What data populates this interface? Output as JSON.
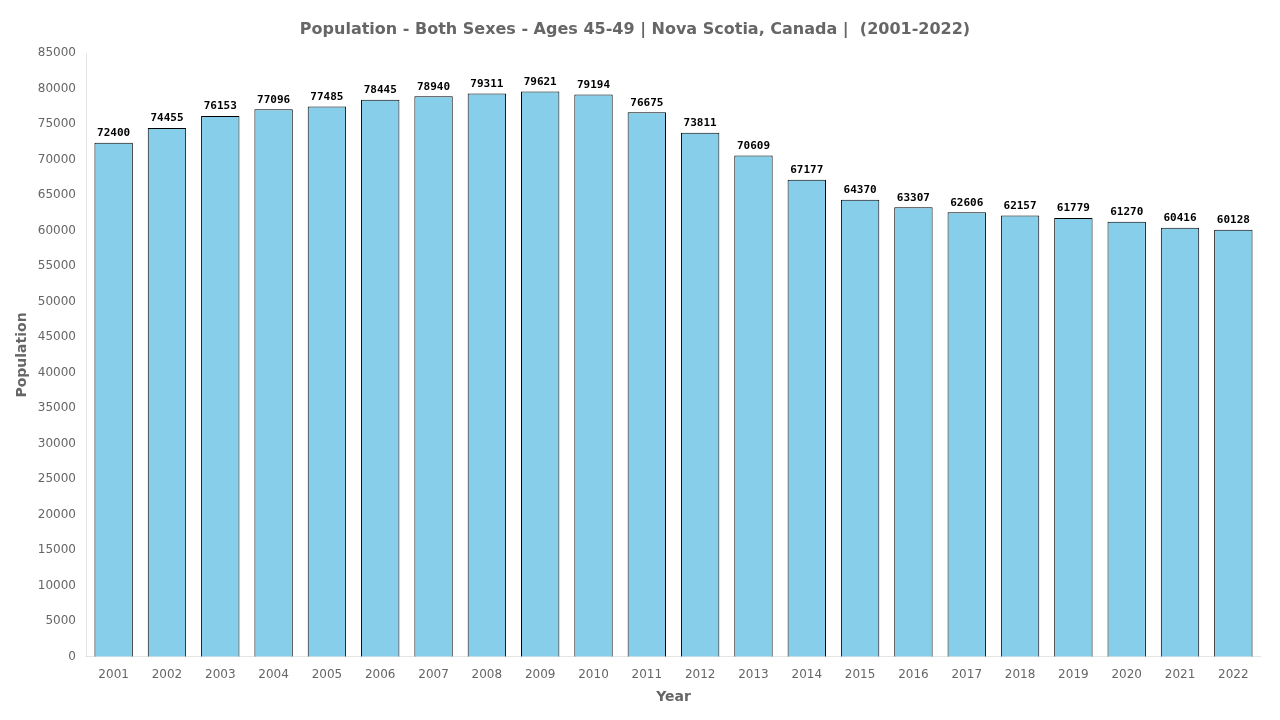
{
  "chart_data": {
    "type": "bar",
    "title": "Population - Both Sexes - Ages 45-49 | Nova Scotia, Canada |  (2001-2022)",
    "xlabel": "Year",
    "ylabel": "Population",
    "categories": [
      "2001",
      "2002",
      "2003",
      "2004",
      "2005",
      "2006",
      "2007",
      "2008",
      "2009",
      "2010",
      "2011",
      "2012",
      "2013",
      "2014",
      "2015",
      "2016",
      "2017",
      "2018",
      "2019",
      "2020",
      "2021",
      "2022"
    ],
    "values": [
      72400,
      74455,
      76153,
      77096,
      77485,
      78445,
      78940,
      79311,
      79621,
      79194,
      76675,
      73811,
      70609,
      67177,
      64370,
      63307,
      62606,
      62157,
      61779,
      61270,
      60416,
      60128
    ],
    "color": "#87ceeb",
    "ylim": [
      0,
      85000
    ],
    "yticks": [
      0,
      5000,
      10000,
      15000,
      20000,
      25000,
      30000,
      35000,
      40000,
      45000,
      50000,
      55000,
      60000,
      65000,
      70000,
      75000,
      80000,
      85000
    ],
    "grid": false,
    "data_labels": true
  }
}
